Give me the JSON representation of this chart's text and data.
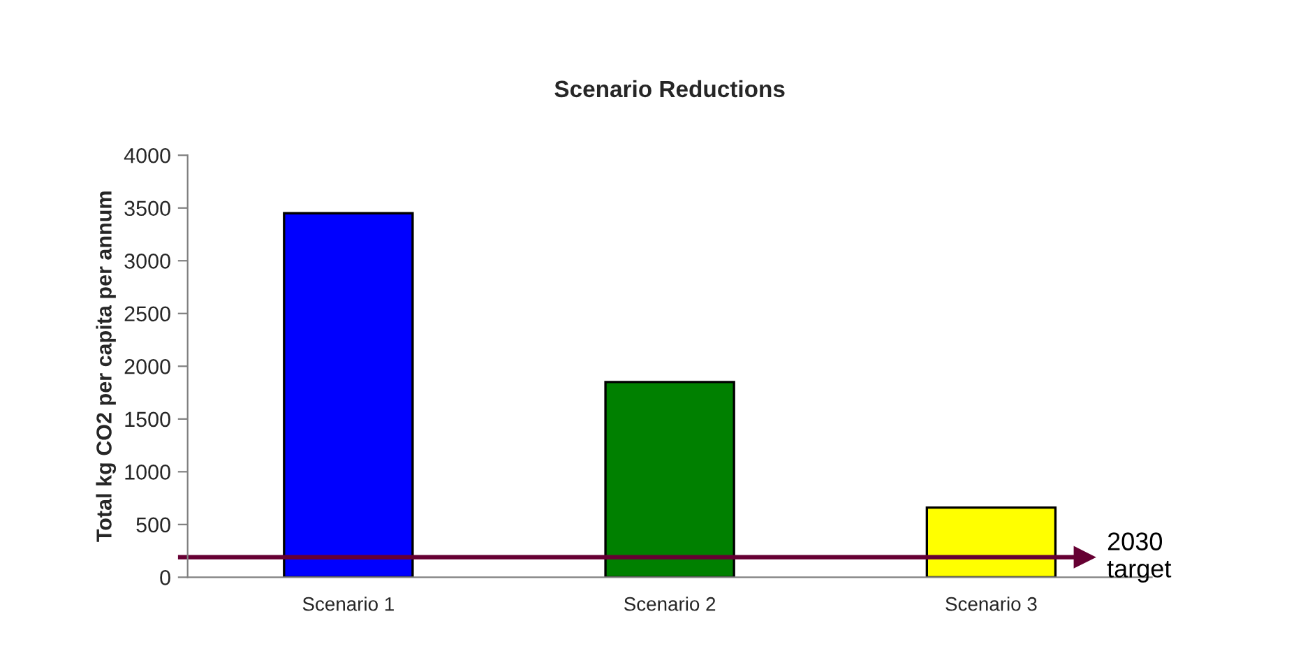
{
  "chart_data": {
    "type": "bar",
    "title": "Scenario Reductions",
    "ylabel": "Total kg CO2 per capita per annum",
    "categories": [
      "Scenario 1",
      "Scenario 2",
      "Scenario 3"
    ],
    "values": [
      3450,
      1850,
      660
    ],
    "colors": [
      "#0000ff",
      "#008000",
      "#ffff00"
    ],
    "ylim": [
      0,
      4000
    ],
    "yticks": [
      0,
      500,
      1000,
      1500,
      2000,
      2500,
      3000,
      3500,
      4000
    ],
    "grid": false,
    "ref_lines": [
      {
        "axis": "y",
        "value": 190,
        "label": "2030 target",
        "color": "#660033"
      }
    ]
  }
}
